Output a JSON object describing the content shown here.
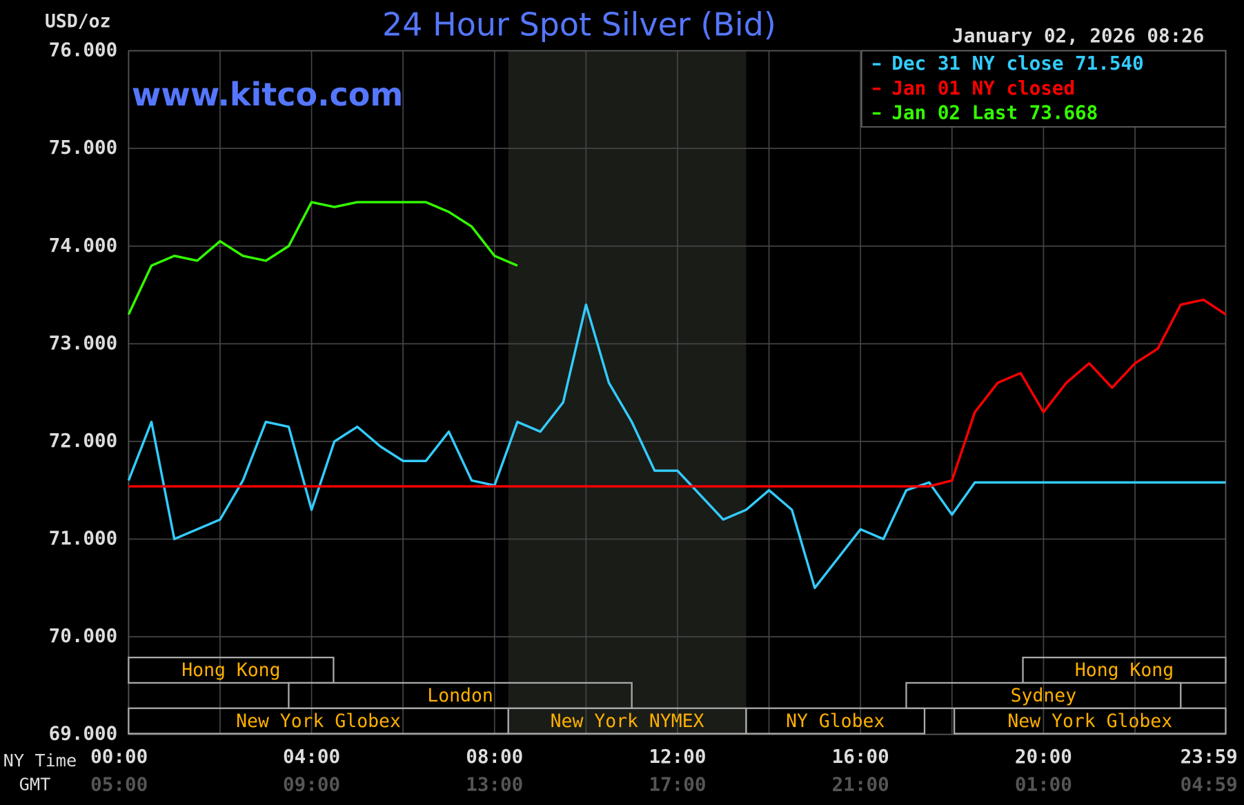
{
  "chart_data": {
    "type": "line",
    "title": "24 Hour Spot Silver (Bid)",
    "ylabel": "USD/oz",
    "timestamp": "January 02, 2026 08:26",
    "watermark": "www.kitco.com",
    "xlabel": "NY Time",
    "x2label": "GMT",
    "x": [
      0,
      0.5,
      1,
      1.5,
      2,
      2.5,
      3,
      3.5,
      4,
      4.5,
      5,
      5.5,
      6,
      6.5,
      7,
      7.5,
      8,
      8.5,
      9,
      9.5,
      10,
      10.5,
      11,
      11.5,
      12,
      12.5,
      13,
      13.5,
      14,
      14.5,
      15,
      15.5,
      16,
      16.5,
      17,
      17.5,
      18,
      18.5,
      19,
      19.5,
      20,
      20.5,
      21,
      21.5,
      22,
      22.5,
      23,
      23.5,
      23.983
    ],
    "xlim": [
      0,
      23.983
    ],
    "xticks": [
      {
        "value": 0,
        "label": "00:00"
      },
      {
        "value": 4,
        "label": "04:00"
      },
      {
        "value": 8,
        "label": "08:00"
      },
      {
        "value": 12,
        "label": "12:00"
      },
      {
        "value": 16,
        "label": "16:00"
      },
      {
        "value": 20,
        "label": "20:00"
      },
      {
        "value": 23.983,
        "label": "23:59"
      }
    ],
    "gmt_ticks": [
      {
        "value": 0,
        "label": "05:00"
      },
      {
        "value": 4,
        "label": "09:00"
      },
      {
        "value": 8,
        "label": "13:00"
      },
      {
        "value": 12,
        "label": "17:00"
      },
      {
        "value": 16,
        "label": "21:00"
      },
      {
        "value": 20,
        "label": "01:00"
      },
      {
        "value": 23.983,
        "label": "04:59"
      }
    ],
    "xgrid": [
      2,
      6,
      10,
      14,
      18,
      22
    ],
    "ylim": [
      69,
      76
    ],
    "yticks": [
      {
        "value": 69,
        "label": "69.000"
      },
      {
        "value": 70,
        "label": "70.000"
      },
      {
        "value": 71,
        "label": "71.000"
      },
      {
        "value": 72,
        "label": "72.000"
      },
      {
        "value": 73,
        "label": "73.000"
      },
      {
        "value": 74,
        "label": "74.000"
      },
      {
        "value": 75,
        "label": "75.000"
      },
      {
        "value": 76,
        "label": "76.000"
      }
    ],
    "grid": true,
    "shaded_span": [
      8.3,
      13.5
    ],
    "legend": "upper right",
    "series": [
      {
        "name": "Dec 31 NY close 71.540",
        "color": "#33ccff",
        "values": [
          71.6,
          72.2,
          71.0,
          71.1,
          71.2,
          71.6,
          72.2,
          72.15,
          71.3,
          72.0,
          72.15,
          71.95,
          71.8,
          71.8,
          72.1,
          71.6,
          71.55,
          72.2,
          72.1,
          72.4,
          73.4,
          72.6,
          72.2,
          71.7,
          71.7,
          71.45,
          71.2,
          71.3,
          71.5,
          71.3,
          70.5,
          70.8,
          71.1,
          71.0,
          71.5,
          71.58,
          71.25,
          71.58,
          71.58,
          71.58,
          71.58,
          71.58,
          71.58,
          71.58,
          71.58,
          71.58,
          71.58,
          71.58,
          71.58
        ]
      },
      {
        "name": "Jan 01 NY closed",
        "color": "#ff0000",
        "values": [
          71.54,
          71.54,
          71.54,
          71.54,
          71.54,
          71.54,
          71.54,
          71.54,
          71.54,
          71.54,
          71.54,
          71.54,
          71.54,
          71.54,
          71.54,
          71.54,
          71.54,
          71.54,
          71.54,
          71.54,
          71.54,
          71.54,
          71.54,
          71.54,
          71.54,
          71.54,
          71.54,
          71.54,
          71.54,
          71.54,
          71.54,
          71.54,
          71.54,
          71.54,
          71.54,
          71.54,
          71.6,
          72.3,
          72.6,
          72.7,
          72.3,
          72.6,
          72.8,
          72.55,
          72.8,
          72.95,
          73.4,
          73.45,
          73.3
        ]
      },
      {
        "name": "Jan 02 Last 73.668",
        "color": "#33ff00",
        "values": [
          73.3,
          73.8,
          73.9,
          73.85,
          74.05,
          73.9,
          73.85,
          74.0,
          74.45,
          74.4,
          74.45,
          74.45,
          74.45,
          74.45,
          74.35,
          74.2,
          73.9,
          73.8,
          null,
          null,
          null,
          null,
          null,
          null,
          null,
          null,
          null,
          null,
          null,
          null,
          null,
          null,
          null,
          null,
          null,
          null,
          null,
          null,
          null,
          null,
          null,
          null,
          null,
          null,
          null,
          null,
          null,
          null,
          null
        ]
      }
    ],
    "session_rows": [
      [
        {
          "label": "Hong Kong",
          "start": 0,
          "end": 4.48
        },
        {
          "label": "Hong Kong",
          "start": 19.55,
          "end": 23.983
        }
      ],
      [
        {
          "label": "London",
          "start": 3.5,
          "end": 11.0
        },
        {
          "label": "Sydney",
          "start": 17.0,
          "end": 23.0
        }
      ],
      [
        {
          "label": "New York Globex",
          "start": 0,
          "end": 8.3
        },
        {
          "label": "New York NYMEX",
          "start": 8.3,
          "end": 13.5
        },
        {
          "label": "NY Globex",
          "start": 13.5,
          "end": 17.4
        },
        {
          "label": "New York Globex",
          "start": 18.05,
          "end": 23.983
        }
      ]
    ]
  }
}
